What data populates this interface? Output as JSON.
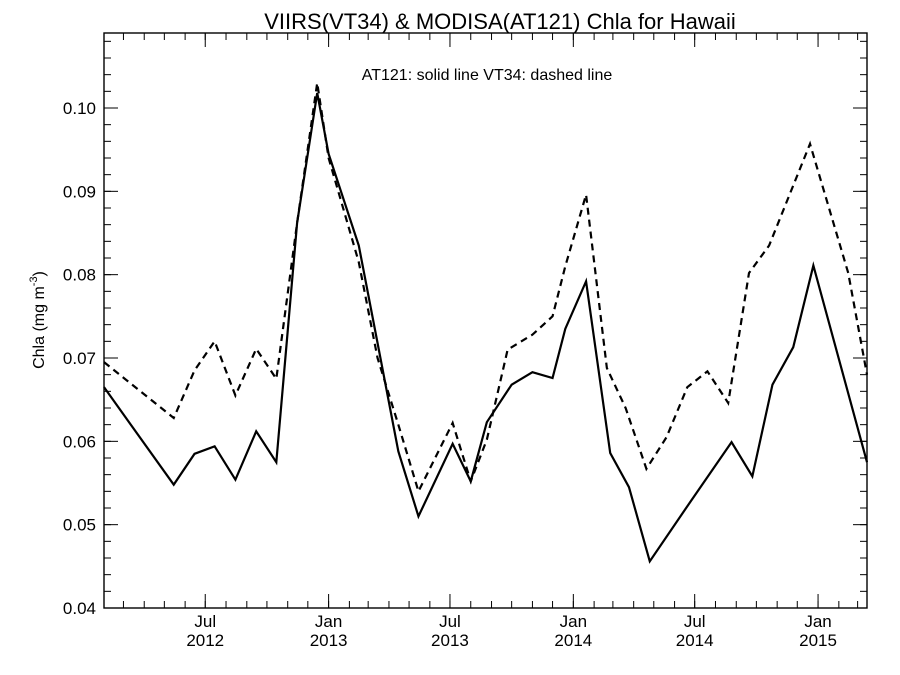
{
  "chart_data": {
    "type": "line",
    "title": "VIIRS(VT34) & MODISA(AT121)  Chla for Hawaii",
    "annotation": "AT121: solid line   VT34: dashed line",
    "ylabel": "Chla (mg m",
    "ylabel_superscript": "-3",
    "ylabel_suffix": ")",
    "ylim": [
      0.04,
      0.109
    ],
    "xlim": [
      "2012-02-01",
      "2015-03-15"
    ],
    "y_ticks": [
      0.04,
      0.05,
      0.06,
      0.07,
      0.08,
      0.09,
      0.1
    ],
    "y_tick_labels": [
      "0.04",
      "0.05",
      "0.06",
      "0.07",
      "0.08",
      "0.09",
      "0.10"
    ],
    "x_major_ticks": [
      {
        "date": "2012-07-01",
        "line1": "Jul",
        "line2": "2012"
      },
      {
        "date": "2013-01-01",
        "line1": "Jan",
        "line2": "2013"
      },
      {
        "date": "2013-07-01",
        "line1": "Jul",
        "line2": "2013"
      },
      {
        "date": "2014-01-01",
        "line1": "Jan",
        "line2": "2014"
      },
      {
        "date": "2014-07-01",
        "line1": "Jul",
        "line2": "2014"
      },
      {
        "date": "2015-01-01",
        "line1": "Jan",
        "line2": "2015"
      }
    ],
    "grid": false,
    "series": [
      {
        "style": "solid",
        "color": "#000000",
        "points": [
          [
            "2012-02-01",
            0.0665
          ],
          [
            "2012-05-15",
            0.0548
          ],
          [
            "2012-06-15",
            0.0585
          ],
          [
            "2012-07-15",
            0.0594
          ],
          [
            "2012-08-15",
            0.0554
          ],
          [
            "2012-09-15",
            0.0612
          ],
          [
            "2012-10-15",
            0.0575
          ],
          [
            "2012-11-15",
            0.0862
          ],
          [
            "2012-12-15",
            0.1018
          ],
          [
            "2013-01-01",
            0.0945
          ],
          [
            "2013-02-15",
            0.0835
          ],
          [
            "2013-03-15",
            0.0718
          ],
          [
            "2013-04-15",
            0.0588
          ],
          [
            "2013-05-15",
            0.051
          ],
          [
            "2013-07-05",
            0.0597
          ],
          [
            "2013-08-01",
            0.0552
          ],
          [
            "2013-08-25",
            0.0623
          ],
          [
            "2013-10-01",
            0.0668
          ],
          [
            "2013-11-01",
            0.0683
          ],
          [
            "2013-12-01",
            0.0676
          ],
          [
            "2013-12-20",
            0.0735
          ],
          [
            "2014-01-20",
            0.0792
          ],
          [
            "2014-02-25",
            0.0586
          ],
          [
            "2014-03-25",
            0.0545
          ],
          [
            "2014-04-25",
            0.0456
          ],
          [
            "2014-06-25",
            0.0528
          ],
          [
            "2014-08-25",
            0.0599
          ],
          [
            "2014-09-25",
            0.0558
          ],
          [
            "2014-10-25",
            0.0668
          ],
          [
            "2014-11-25",
            0.0713
          ],
          [
            "2014-12-25",
            0.0811
          ],
          [
            "2015-03-15",
            0.0575
          ]
        ]
      },
      {
        "style": "dashed",
        "color": "#000000",
        "points": [
          [
            "2012-02-01",
            0.0695
          ],
          [
            "2012-05-15",
            0.0628
          ],
          [
            "2012-06-15",
            0.0685
          ],
          [
            "2012-07-15",
            0.072
          ],
          [
            "2012-08-15",
            0.0655
          ],
          [
            "2012-09-15",
            0.0711
          ],
          [
            "2012-10-15",
            0.0675
          ],
          [
            "2012-11-15",
            0.0862
          ],
          [
            "2012-12-15",
            0.103
          ],
          [
            "2013-01-01",
            0.094
          ],
          [
            "2013-02-15",
            0.0815
          ],
          [
            "2013-03-15",
            0.07
          ],
          [
            "2013-04-15",
            0.062
          ],
          [
            "2013-05-15",
            0.054
          ],
          [
            "2013-07-05",
            0.0622
          ],
          [
            "2013-08-01",
            0.0552
          ],
          [
            "2013-08-25",
            0.0602
          ],
          [
            "2013-09-25",
            0.071
          ],
          [
            "2013-11-01",
            0.0728
          ],
          [
            "2013-12-01",
            0.075
          ],
          [
            "2013-12-20",
            0.081
          ],
          [
            "2014-01-20",
            0.0896
          ],
          [
            "2014-02-20",
            0.0688
          ],
          [
            "2014-03-20",
            0.064
          ],
          [
            "2014-04-20",
            0.0567
          ],
          [
            "2014-05-20",
            0.0605
          ],
          [
            "2014-06-20",
            0.0665
          ],
          [
            "2014-07-20",
            0.0684
          ],
          [
            "2014-08-20",
            0.0646
          ],
          [
            "2014-09-20",
            0.0802
          ],
          [
            "2014-10-20",
            0.0835
          ],
          [
            "2014-12-20",
            0.0957
          ],
          [
            "2015-02-15",
            0.0802
          ],
          [
            "2015-03-15",
            0.068
          ]
        ]
      }
    ]
  }
}
